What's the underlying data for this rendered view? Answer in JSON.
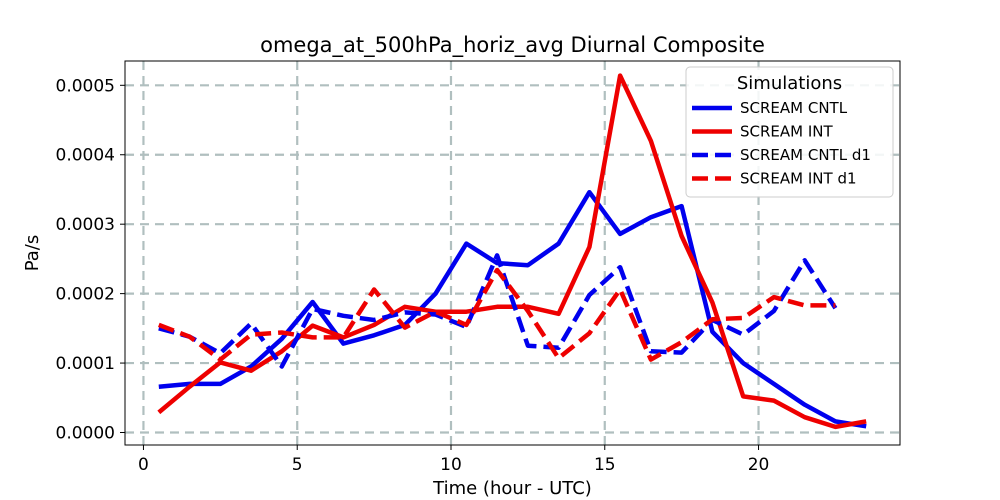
{
  "chart_data": {
    "type": "line",
    "title": "omega_at_500hPa_horiz_avg Diurnal Composite",
    "xlabel": "Time (hour - UTC)",
    "ylabel": "Pa/s",
    "xlim": [
      -0.6,
      24.6
    ],
    "ylim": [
      -1.8e-05,
      0.000535
    ],
    "x_ticks": [
      0,
      5,
      10,
      15,
      20
    ],
    "x_tick_labels": [
      "0",
      "5",
      "10",
      "15",
      "20"
    ],
    "y_ticks": [
      0,
      0.0001,
      0.0002,
      0.0003,
      0.0004,
      0.0005
    ],
    "y_tick_labels": [
      "0.0000",
      "0.0001",
      "0.0002",
      "0.0003",
      "0.0004",
      "0.0005"
    ],
    "grid": true,
    "legend": {
      "title": "Simulations",
      "placement": "top-right"
    },
    "series": [
      {
        "name": "SCREAM CNTL",
        "color": "#0000ee",
        "dash": "solid",
        "x": [
          0.5,
          1.5,
          2.5,
          3.5,
          4.5,
          5.5,
          6.5,
          7.5,
          8.5,
          9.5,
          10.5,
          11.5,
          12.5,
          13.5,
          14.5,
          15.5,
          16.5,
          17.5,
          18.5,
          19.5,
          20.5,
          21.5,
          22.5,
          23.5
        ],
        "y": [
          6.6e-05,
          7e-05,
          7e-05,
          9.5e-05,
          0.000135,
          0.000188,
          0.000128,
          0.00014,
          0.000155,
          0.0002,
          0.000272,
          0.000244,
          0.000241,
          0.000272,
          0.000346,
          0.000286,
          0.00031,
          0.000326,
          0.000145,
          0.0001,
          7e-05,
          4e-05,
          1.6e-05,
          9e-06
        ]
      },
      {
        "name": "SCREAM INT",
        "color": "#ee0000",
        "dash": "solid",
        "x": [
          0.5,
          1.5,
          2.5,
          3.5,
          4.5,
          5.5,
          6.5,
          7.5,
          8.5,
          9.5,
          10.5,
          11.5,
          12.5,
          13.5,
          14.5,
          15.5,
          16.5,
          17.5,
          18.5,
          19.5,
          20.5,
          21.5,
          22.5,
          23.5
        ],
        "y": [
          2.9e-05,
          6.6e-05,
          0.000101,
          8.9e-05,
          0.000117,
          0.000154,
          0.000137,
          0.000155,
          0.000181,
          0.000174,
          0.000174,
          0.000181,
          0.000181,
          0.000171,
          0.000267,
          0.000514,
          0.00042,
          0.000283,
          0.000187,
          5.2e-05,
          4.6e-05,
          2.2e-05,
          8e-06,
          1.6e-05
        ]
      },
      {
        "name": "SCREAM CNTL d1",
        "color": "#0000ee",
        "dash": "dashed",
        "x": [
          0.5,
          1.5,
          2.5,
          3.5,
          4.5,
          5.5,
          6.5,
          7.5,
          8.5,
          9.5,
          10.5,
          11.5,
          12.5,
          13.5,
          14.5,
          15.5,
          16.5,
          17.5,
          18.5,
          19.5,
          20.5,
          21.5,
          22.5
        ],
        "y": [
          0.00015,
          0.000138,
          0.000114,
          0.000157,
          9.5e-05,
          0.000178,
          0.000168,
          0.000162,
          0.000173,
          0.00017,
          0.000152,
          0.000255,
          0.000125,
          0.000122,
          0.000198,
          0.000238,
          0.000117,
          0.000115,
          0.000162,
          0.000141,
          0.000175,
          0.000248,
          0.000179
        ]
      },
      {
        "name": "SCREAM INT d1",
        "color": "#ee0000",
        "dash": "dashed",
        "x": [
          0.5,
          1.5,
          2.5,
          3.5,
          4.5,
          5.5,
          6.5,
          7.5,
          8.5,
          9.5,
          10.5,
          11.5,
          12.5,
          13.5,
          14.5,
          15.5,
          16.5,
          17.5,
          18.5,
          19.5,
          20.5,
          21.5,
          22.5
        ],
        "y": [
          0.000155,
          0.000138,
          0.000105,
          0.000141,
          0.000144,
          0.000137,
          0.000137,
          0.000206,
          0.000151,
          0.000174,
          0.000155,
          0.000234,
          0.000175,
          0.000107,
          0.000143,
          0.000206,
          0.000105,
          0.00013,
          0.000163,
          0.000165,
          0.000195,
          0.000183,
          0.000183
        ]
      }
    ]
  }
}
